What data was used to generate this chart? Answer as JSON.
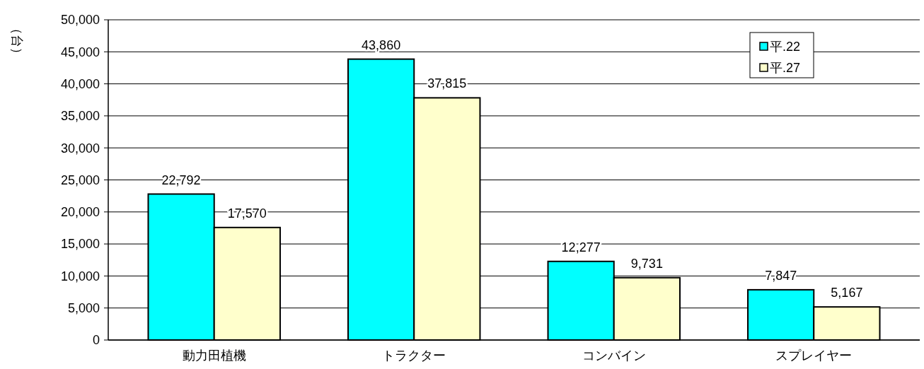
{
  "chart_data": {
    "type": "bar",
    "ylabel": "（台）",
    "categories": [
      "動力田植機",
      "トラクター",
      "コンバイン",
      "スプレイヤー"
    ],
    "series": [
      {
        "name": "平.22",
        "color": "#00ffff",
        "values": [
          22792,
          43860,
          12277,
          7847
        ],
        "value_labels": [
          "22,792",
          "43,860",
          "12,277",
          "7,847"
        ]
      },
      {
        "name": "平.27",
        "color": "#ffffcc",
        "values": [
          17570,
          37815,
          9731,
          5167
        ],
        "value_labels": [
          "17,570",
          "37,815",
          "9,731",
          "5,167"
        ]
      }
    ],
    "ylim": [
      0,
      50000
    ],
    "yticks": [
      {
        "value": 0,
        "label": "0"
      },
      {
        "value": 5000,
        "label": "5,000"
      },
      {
        "value": 10000,
        "label": "10,000"
      },
      {
        "value": 15000,
        "label": "15,000"
      },
      {
        "value": 20000,
        "label": "20,000"
      },
      {
        "value": 25000,
        "label": "25,000"
      },
      {
        "value": 30000,
        "label": "30,000"
      },
      {
        "value": 35000,
        "label": "35,000"
      },
      {
        "value": 40000,
        "label": "40,000"
      },
      {
        "value": 45000,
        "label": "45,000"
      },
      {
        "value": 50000,
        "label": "50,000"
      }
    ],
    "grid": "y",
    "legend": "top right"
  }
}
